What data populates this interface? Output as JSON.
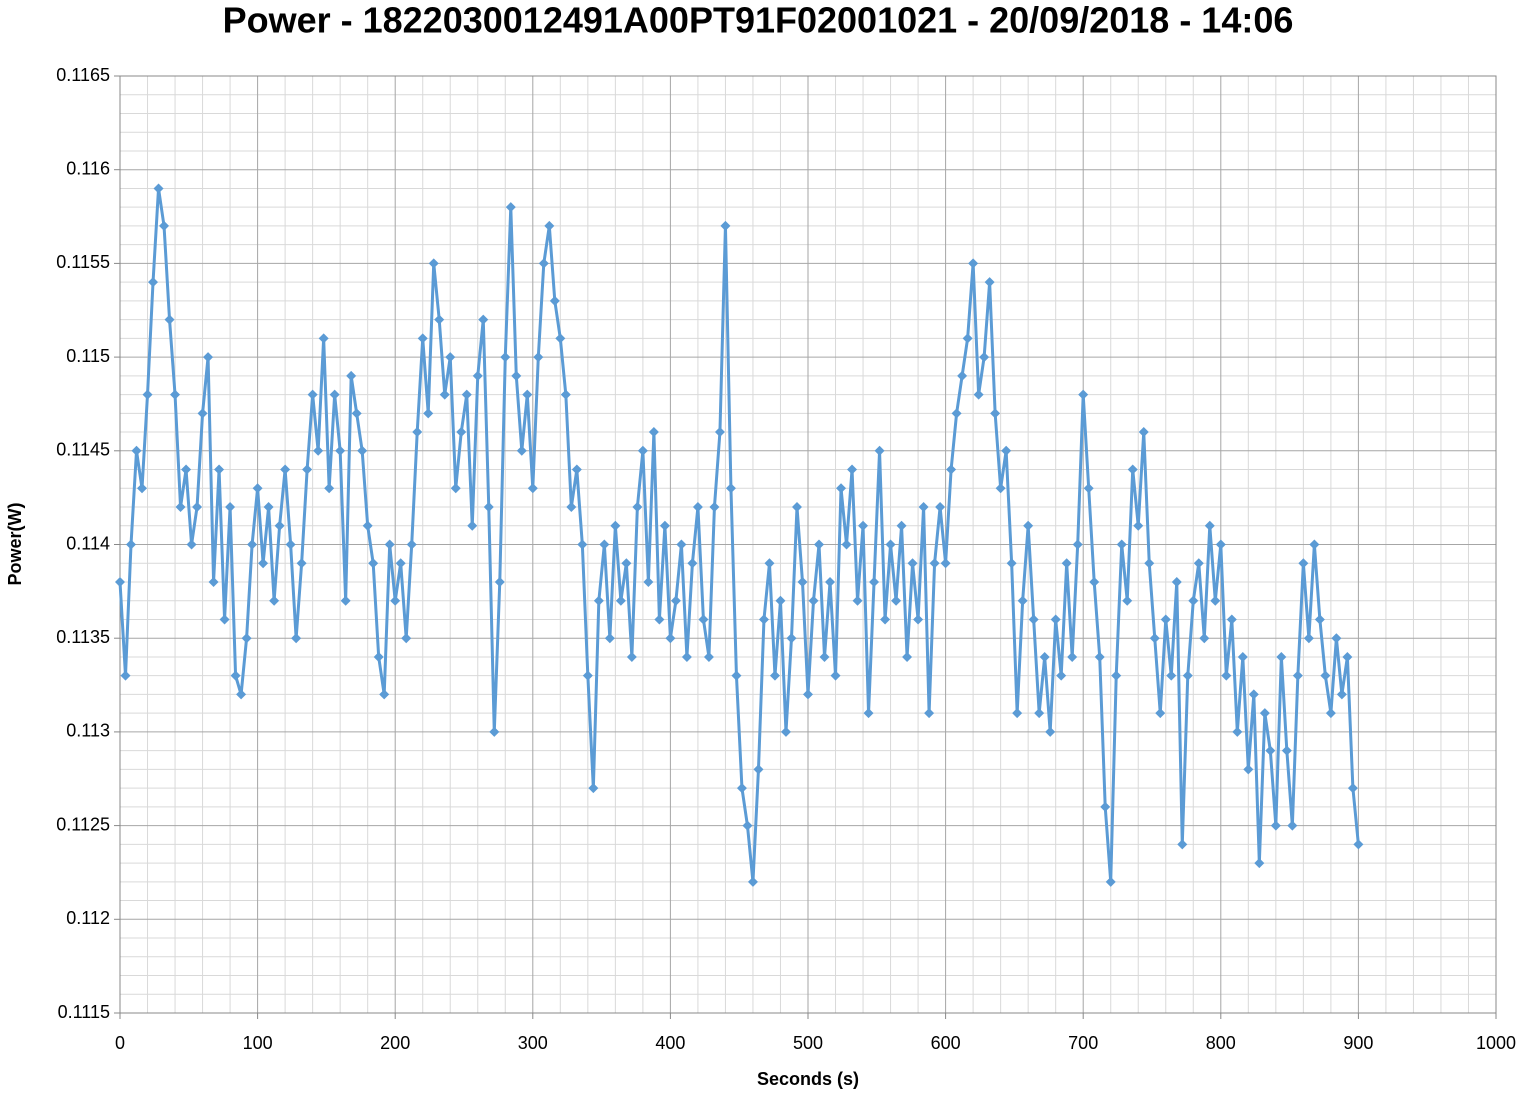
{
  "chart_data": {
    "type": "line",
    "title": "Power - 1822030012491A00PT91F02001021 - 20/09/2018 - 14:06",
    "x_label": "Seconds (s)",
    "y_label": "Power(W)",
    "xlim": [
      0,
      1000
    ],
    "xticks": [
      0,
      100,
      200,
      300,
      400,
      500,
      600,
      700,
      800,
      900,
      1000
    ],
    "ylim": [
      0.1115,
      0.1165
    ],
    "yticks": [
      0.1115,
      0.112,
      0.1125,
      0.113,
      0.1135,
      0.114,
      0.1145,
      0.115,
      0.1155,
      0.116,
      0.1165
    ],
    "grid": true,
    "minor_grid_divisions": 5,
    "marker": "diamond",
    "x": [
      0,
      4,
      8,
      12,
      16,
      20,
      24,
      28,
      32,
      36,
      40,
      44,
      48,
      52,
      56,
      60,
      64,
      68,
      72,
      76,
      80,
      84,
      88,
      92,
      96,
      100,
      104,
      108,
      112,
      116,
      120,
      124,
      128,
      132,
      136,
      140,
      144,
      148,
      152,
      156,
      160,
      164,
      168,
      172,
      176,
      180,
      184,
      188,
      192,
      196,
      200,
      204,
      208,
      212,
      216,
      220,
      224,
      228,
      232,
      236,
      240,
      244,
      248,
      252,
      256,
      260,
      264,
      268,
      272,
      276,
      280,
      284,
      288,
      292,
      296,
      300,
      304,
      308,
      312,
      316,
      320,
      324,
      328,
      332,
      336,
      340,
      344,
      348,
      352,
      356,
      360,
      364,
      368,
      372,
      376,
      380,
      384,
      388,
      392,
      396,
      400,
      404,
      408,
      412,
      416,
      420,
      424,
      428,
      432,
      436,
      440,
      444,
      448,
      452,
      456,
      460,
      464,
      468,
      472,
      476,
      480,
      484,
      488,
      492,
      496,
      500,
      504,
      508,
      512,
      516,
      520,
      524,
      528,
      532,
      536,
      540,
      544,
      548,
      552,
      556,
      560,
      564,
      568,
      572,
      576,
      580,
      584,
      588,
      592,
      596,
      600,
      604,
      608,
      612,
      616,
      620,
      624,
      628,
      632,
      636,
      640,
      644,
      648,
      652,
      656,
      660,
      664,
      668,
      672,
      676,
      680,
      684,
      688,
      692,
      696,
      700,
      704,
      708,
      712,
      716,
      720,
      724,
      728,
      732,
      736,
      740,
      744,
      748,
      752,
      756,
      760,
      764,
      768,
      772,
      776,
      780,
      784,
      788,
      792,
      796,
      800,
      804,
      808,
      812,
      816,
      820,
      824,
      828,
      832,
      836,
      840,
      844,
      848,
      852,
      856,
      860,
      864,
      868,
      872,
      876,
      880,
      884,
      888,
      892,
      896,
      900
    ],
    "series": [
      {
        "name": "Power(W)",
        "color": "#5b9bd5",
        "values": [
          0.1138,
          0.1133,
          0.114,
          0.1145,
          0.1143,
          0.1148,
          0.1154,
          0.1159,
          0.1157,
          0.1152,
          0.1148,
          0.1142,
          0.1144,
          0.114,
          0.1142,
          0.1147,
          0.115,
          0.1138,
          0.1144,
          0.1136,
          0.1142,
          0.1133,
          0.1132,
          0.1135,
          0.114,
          0.1143,
          0.1139,
          0.1142,
          0.1137,
          0.1141,
          0.1144,
          0.114,
          0.1135,
          0.1139,
          0.1144,
          0.1148,
          0.1145,
          0.1151,
          0.1143,
          0.1148,
          0.1145,
          0.1137,
          0.1149,
          0.1147,
          0.1145,
          0.1141,
          0.1139,
          0.1134,
          0.1132,
          0.114,
          0.1137,
          0.1139,
          0.1135,
          0.114,
          0.1146,
          0.1151,
          0.1147,
          0.1155,
          0.1152,
          0.1148,
          0.115,
          0.1143,
          0.1146,
          0.1148,
          0.1141,
          0.1149,
          0.1152,
          0.1142,
          0.113,
          0.1138,
          0.115,
          0.1158,
          0.1149,
          0.1145,
          0.1148,
          0.1143,
          0.115,
          0.1155,
          0.1157,
          0.1153,
          0.1151,
          0.1148,
          0.1142,
          0.1144,
          0.114,
          0.1133,
          0.1127,
          0.1137,
          0.114,
          0.1135,
          0.1141,
          0.1137,
          0.1139,
          0.1134,
          0.1142,
          0.1145,
          0.1138,
          0.1146,
          0.1136,
          0.1141,
          0.1135,
          0.1137,
          0.114,
          0.1134,
          0.1139,
          0.1142,
          0.1136,
          0.1134,
          0.1142,
          0.1146,
          0.1157,
          0.1143,
          0.1133,
          0.1127,
          0.1125,
          0.1122,
          0.1128,
          0.1136,
          0.1139,
          0.1133,
          0.1137,
          0.113,
          0.1135,
          0.1142,
          0.1138,
          0.1132,
          0.1137,
          0.114,
          0.1134,
          0.1138,
          0.1133,
          0.1143,
          0.114,
          0.1144,
          0.1137,
          0.1141,
          0.1131,
          0.1138,
          0.1145,
          0.1136,
          0.114,
          0.1137,
          0.1141,
          0.1134,
          0.1139,
          0.1136,
          0.1142,
          0.1131,
          0.1139,
          0.1142,
          0.1139,
          0.1144,
          0.1147,
          0.1149,
          0.1151,
          0.1155,
          0.1148,
          0.115,
          0.1154,
          0.1147,
          0.1143,
          0.1145,
          0.1139,
          0.1131,
          0.1137,
          0.1141,
          0.1136,
          0.1131,
          0.1134,
          0.113,
          0.1136,
          0.1133,
          0.1139,
          0.1134,
          0.114,
          0.1148,
          0.1143,
          0.1138,
          0.1134,
          0.1126,
          0.1122,
          0.1133,
          0.114,
          0.1137,
          0.1144,
          0.1141,
          0.1146,
          0.1139,
          0.1135,
          0.1131,
          0.1136,
          0.1133,
          0.1138,
          0.1124,
          0.1133,
          0.1137,
          0.1139,
          0.1135,
          0.1141,
          0.1137,
          0.114,
          0.1133,
          0.1136,
          0.113,
          0.1134,
          0.1128,
          0.1132,
          0.1123,
          0.1131,
          0.1129,
          0.1125,
          0.1134,
          0.1129,
          0.1125,
          0.1133,
          0.1139,
          0.1135,
          0.114,
          0.1136,
          0.1133,
          0.1131,
          0.1135,
          0.1132,
          0.1134,
          0.1127,
          0.1124
        ]
      }
    ]
  }
}
